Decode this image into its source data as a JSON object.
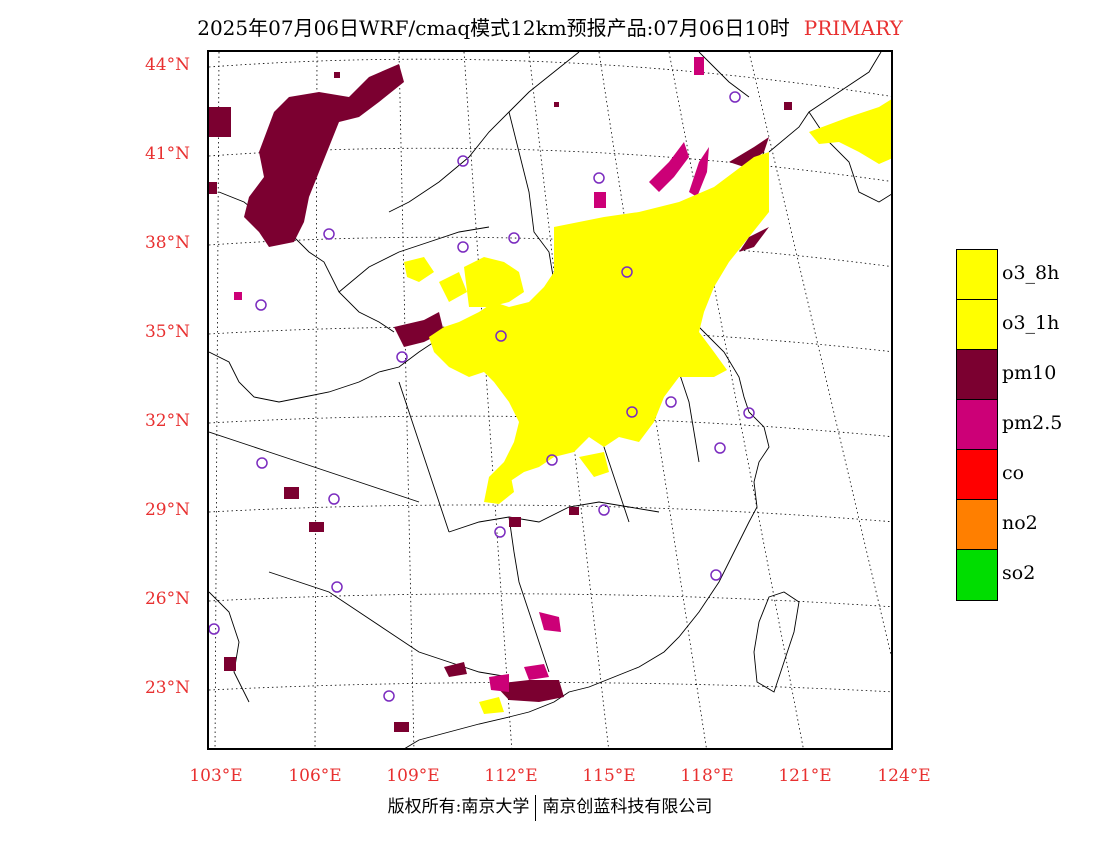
{
  "header": {
    "title": "2025年07月06日WRF/cmaq模式12km预报产品:07月06日10时",
    "product": "PRIMARY"
  },
  "map": {
    "lat_labels": [
      "44°N",
      "41°N",
      "38°N",
      "35°N",
      "32°N",
      "29°N",
      "26°N",
      "23°N"
    ],
    "lon_labels": [
      "103°E",
      "106°E",
      "109°E",
      "112°E",
      "115°E",
      "118°E",
      "121°E",
      "124°E"
    ]
  },
  "legend": {
    "items": [
      {
        "label": "o3_8h",
        "color": "#ffff00"
      },
      {
        "label": "o3_1h",
        "color": "#ffff00"
      },
      {
        "label": "pm10",
        "color": "#7b0030"
      },
      {
        "label": "pm2.5",
        "color": "#cc0077"
      },
      {
        "label": "co",
        "color": "#ff0000"
      },
      {
        "label": "no2",
        "color": "#ff7f00"
      },
      {
        "label": "so2",
        "color": "#00dd00"
      }
    ]
  },
  "footer": {
    "copyright_left": "版权所有:南京大学",
    "copyright_right": "南京创蓝科技有限公司"
  }
}
